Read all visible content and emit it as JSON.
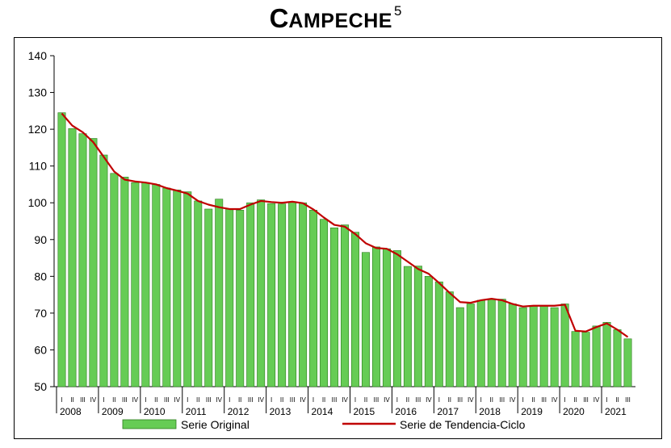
{
  "chart_data": {
    "type": "bar",
    "title": "CAMPECHE",
    "title_superscript": "5",
    "ylim": [
      50,
      140
    ],
    "yticks": [
      50,
      60,
      70,
      80,
      90,
      100,
      110,
      120,
      130,
      140
    ],
    "years": [
      "2008",
      "2009",
      "2010",
      "2011",
      "2012",
      "2013",
      "2014",
      "2015",
      "2016",
      "2017",
      "2018",
      "2019",
      "2020",
      "2021"
    ],
    "quarter_labels": [
      "I",
      "II",
      "III",
      "IV"
    ],
    "series": [
      {
        "name": "Serie Original",
        "type": "bar",
        "color": "#66CC55",
        "values": [
          124.5,
          120.2,
          118.8,
          117.5,
          113.0,
          108.0,
          107.0,
          105.5,
          105.5,
          105.0,
          104.0,
          103.5,
          103.0,
          100.5,
          98.3,
          101.0,
          98.3,
          98.0,
          100.0,
          100.8,
          99.8,
          99.7,
          100.2,
          100.0,
          98.0,
          95.5,
          93.2,
          94.0,
          92.0,
          86.5,
          88.0,
          87.5,
          87.0,
          82.7,
          82.8,
          80.0,
          78.5,
          75.8,
          71.5,
          72.5,
          73.5,
          73.8,
          73.8,
          72.5,
          71.5,
          72.0,
          72.0,
          71.5,
          72.5,
          65.0,
          64.8,
          66.5,
          67.5,
          65.5,
          63.0
        ]
      },
      {
        "name": "Serie de Tendencia-Ciclo",
        "type": "line",
        "color": "#C00000",
        "values": [
          124.3,
          121.0,
          119.2,
          116.5,
          112.5,
          108.5,
          106.3,
          105.8,
          105.5,
          105.0,
          104.0,
          103.3,
          102.5,
          100.5,
          99.5,
          98.8,
          98.3,
          98.3,
          99.5,
          100.5,
          100.2,
          100.0,
          100.3,
          99.9,
          98.2,
          96.0,
          94.0,
          93.5,
          91.5,
          89.0,
          87.7,
          87.5,
          86.0,
          84.0,
          82.0,
          80.7,
          78.2,
          75.5,
          73.0,
          72.8,
          73.5,
          73.9,
          73.5,
          72.5,
          71.8,
          72.0,
          72.0,
          72.0,
          72.3,
          65.2,
          65.0,
          66.2,
          67.2,
          65.5,
          63.5
        ]
      }
    ],
    "legend_position": "bottom",
    "grid": false
  }
}
